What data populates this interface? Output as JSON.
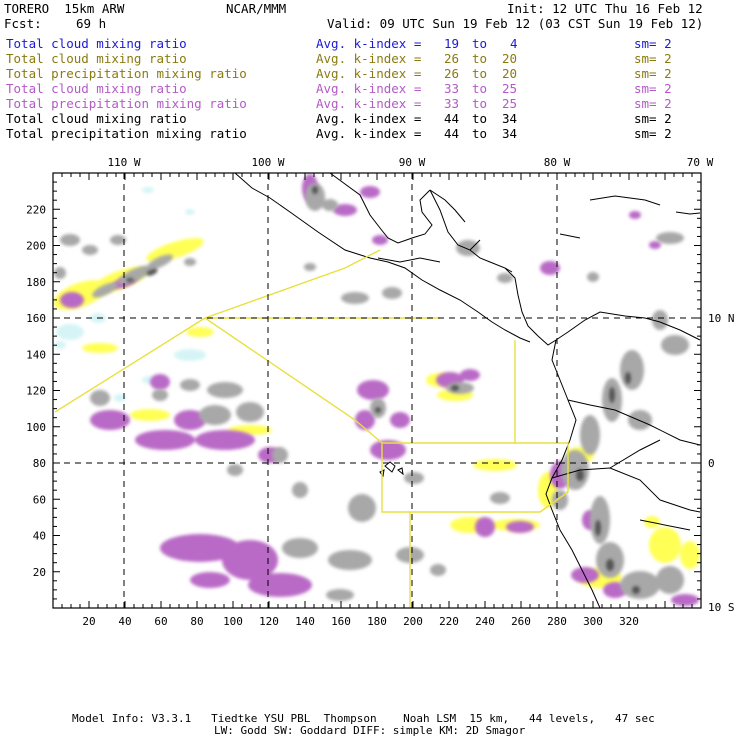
{
  "header": {
    "model": "TORERO  15km ARW",
    "org": "NCAR/MMM",
    "init": "Init: 12 UTC Thu 16 Feb 12",
    "fcst_label": "Fcst:",
    "fcst_value": "69 h",
    "valid": "Valid: 09 UTC Sun 19 Feb 12 (03 CST Sun 19 Feb 12)"
  },
  "legend": [
    {
      "field": "Total cloud mixing ratio",
      "kindex": "Avg. k-index =",
      "hi": "19",
      "to": "to",
      "lo": "4",
      "sm": "sm= 2",
      "color": "#1a1ad8"
    },
    {
      "field": "Total cloud mixing ratio",
      "kindex": "Avg. k-index =",
      "hi": "26",
      "to": "to",
      "lo": "20",
      "sm": "sm= 2",
      "color": "#8a7a10"
    },
    {
      "field": "Total precipitation mixing ratio",
      "kindex": "Avg. k-index =",
      "hi": "26",
      "to": "to",
      "lo": "20",
      "sm": "sm= 2",
      "color": "#8a7a10"
    },
    {
      "field": "Total cloud mixing ratio",
      "kindex": "Avg. k-index =",
      "hi": "33",
      "to": "to",
      "lo": "25",
      "sm": "sm= 2",
      "color": "#b35ac6"
    },
    {
      "field": "Total precipitation mixing ratio",
      "kindex": "Avg. k-index =",
      "hi": "33",
      "to": "to",
      "lo": "25",
      "sm": "sm= 2",
      "color": "#b35ac6"
    },
    {
      "field": "Total cloud mixing ratio",
      "kindex": "Avg. k-index =",
      "hi": "44",
      "to": "to",
      "lo": "34",
      "sm": "sm= 2",
      "color": "#000000"
    },
    {
      "field": "Total precipitation mixing ratio",
      "kindex": "Avg. k-index =",
      "hi": "44",
      "to": "to",
      "lo": "34",
      "sm": "sm= 2",
      "color": "#000000"
    }
  ],
  "map": {
    "lon_labels": [
      "110 W",
      "100 W",
      "90 W",
      "80 W",
      "70 W"
    ],
    "lat_labels": [
      "10 N",
      "0",
      "10 S"
    ],
    "x_ticks": [
      "20",
      "40",
      "60",
      "80",
      "100",
      "120",
      "140",
      "160",
      "180",
      "200",
      "220",
      "240",
      "260",
      "280",
      "300",
      "320"
    ],
    "y_ticks": [
      "220",
      "200",
      "180",
      "160",
      "140",
      "120",
      "100",
      "80",
      "60",
      "40",
      "20"
    ],
    "colors": {
      "gray": "#a8a8a8",
      "dark": "#555555",
      "yellow": "#ffff55",
      "violet": "#b96ac6",
      "cyan": "#d6f4f6",
      "domain": "#e8e040"
    }
  },
  "footer": {
    "line1": "Model Info: V3.3.1   Tiedtke YSU PBL  Thompson    Noah LSM  15 km,   44 levels,   47 sec",
    "line2": "LW: Godd SW: Goddard DIFF: simple KM: 2D Smagor"
  }
}
